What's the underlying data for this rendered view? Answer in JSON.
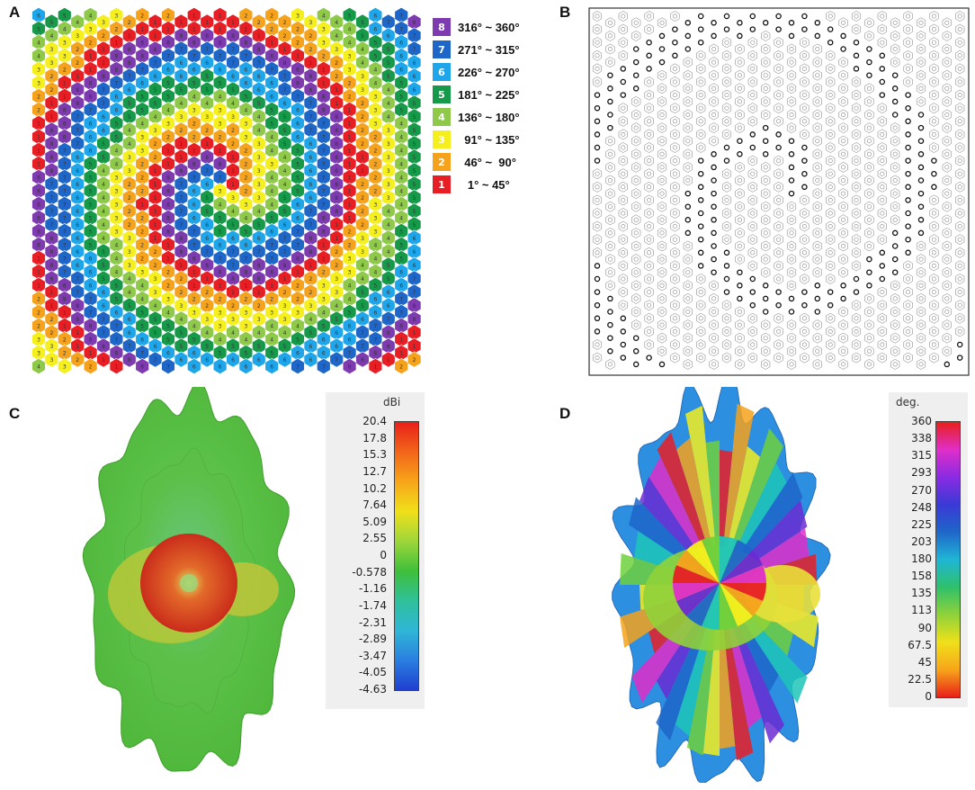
{
  "panels": {
    "a": "A",
    "b": "B",
    "c": "C",
    "d": "D"
  },
  "phase_legend": [
    {
      "state": "8",
      "label": "316° ~ 360°",
      "color": "#7e3bb0"
    },
    {
      "state": "7",
      "label": "271° ~ 315°",
      "color": "#1f66c9"
    },
    {
      "state": "6",
      "label": "226° ~ 270°",
      "color": "#1fa6ea"
    },
    {
      "state": "5",
      "label": "181° ~ 225°",
      "color": "#169a4a"
    },
    {
      "state": "4",
      "label": "136° ~ 180°",
      "color": "#8fc94a"
    },
    {
      "state": "3",
      "label": "  91° ~ 135°",
      "color": "#f5ef1e"
    },
    {
      "state": "2",
      "label": "  46° ~  90°",
      "color": "#f5a21c"
    },
    {
      "state": "1",
      "label": "   1° ~ 45°",
      "color": "#e81e25"
    }
  ],
  "gain_colorbar": {
    "unit": "dBi",
    "ticks": [
      "20.4",
      "17.8",
      "15.3",
      "12.7",
      "10.2",
      "7.64",
      "5.09",
      "2.55",
      "0",
      "-0.578",
      "-1.16",
      "-1.74",
      "-2.31",
      "-2.89",
      "-3.47",
      "-4.05",
      "-4.63"
    ]
  },
  "phase_colorbar": {
    "unit": "deg.",
    "ticks": [
      "360",
      "338",
      "315",
      "293",
      "270",
      "248",
      "225",
      "203",
      "180",
      "158",
      "135",
      "113",
      "90",
      "67.5",
      "45",
      "22.5",
      "0"
    ]
  }
}
